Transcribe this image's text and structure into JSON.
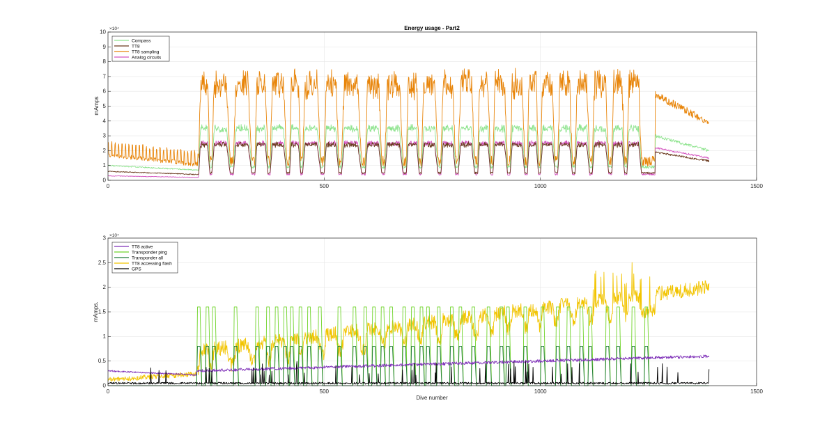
{
  "chart_data": [
    {
      "type": "line",
      "title": "Energy usage - Part2",
      "xlabel": "",
      "ylabel": "mAmps",
      "y_exponent": "×10⁴",
      "xlim": [
        0,
        1500
      ],
      "ylim": [
        0,
        10
      ],
      "xticks": [
        "0",
        "500",
        "1000",
        "1500"
      ],
      "yticks": [
        "0",
        "1",
        "2",
        "3",
        "4",
        "5",
        "6",
        "7",
        "8",
        "9",
        "10"
      ],
      "legend_position": "top-left",
      "grid": true,
      "series": [
        {
          "name": "Compass",
          "color": "#8fe48f"
        },
        {
          "name": "TT8",
          "color": "#6b3a1f"
        },
        {
          "name": "TT8 sampling",
          "color": "#e8850a"
        },
        {
          "name": "Analog circuits",
          "color": "#d455c0"
        }
      ]
    },
    {
      "type": "line",
      "title": "",
      "xlabel": "Dive number",
      "ylabel": "mAmps.",
      "y_exponent": "×10⁴",
      "xlim": [
        0,
        1500
      ],
      "ylim": [
        0,
        3
      ],
      "xticks": [
        "0",
        "500",
        "1000",
        "1500"
      ],
      "yticks": [
        "0",
        "0.5",
        "1",
        "1.5",
        "2",
        "2.5",
        "3"
      ],
      "legend_position": "top-left",
      "grid": true,
      "series": [
        {
          "name": "TT8 active",
          "color": "#7e2fb8"
        },
        {
          "name": "Transponder ping",
          "color": "#6fd42a"
        },
        {
          "name": "Transponder all",
          "color": "#1f7a36"
        },
        {
          "name": "TT8 accessing flash",
          "color": "#f2c400"
        },
        {
          "name": "GPS",
          "color": "#000000"
        }
      ]
    }
  ]
}
